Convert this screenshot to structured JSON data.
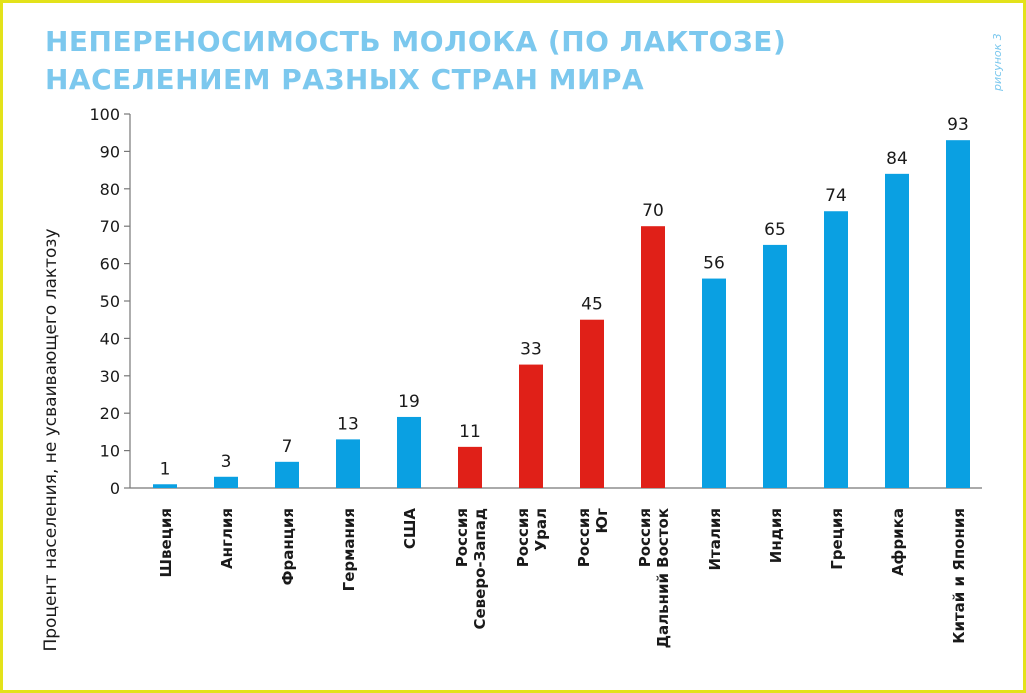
{
  "chart_data": {
    "type": "bar",
    "title": [
      "НЕПЕРЕНОСИМОСТЬ МОЛОКА (ПО ЛАКТОЗЕ)",
      "НАСЕЛЕНИЕМ РАЗНЫХ СТРАН МИРА"
    ],
    "figure_label": "рисунок 3",
    "ylabel": "Процент населения, не усваивающего лактозу",
    "xlabel": "",
    "ylim": [
      0,
      100
    ],
    "yticks": [
      0,
      10,
      20,
      30,
      40,
      50,
      60,
      70,
      80,
      90,
      100
    ],
    "grid": false,
    "categories": [
      [
        "Швеция"
      ],
      [
        "Англия"
      ],
      [
        "Франция"
      ],
      [
        "Германия"
      ],
      [
        "США"
      ],
      [
        "Россия",
        "Северо-Запад"
      ],
      [
        "Россия",
        "Урал"
      ],
      [
        "Россия",
        "Юг"
      ],
      [
        "Россия",
        "Дальний Восток"
      ],
      [
        "Италия"
      ],
      [
        "Индия"
      ],
      [
        "Греция"
      ],
      [
        "Африка"
      ],
      [
        "Китай и Япония"
      ]
    ],
    "values": [
      1,
      3,
      7,
      13,
      19,
      11,
      33,
      45,
      70,
      56,
      65,
      74,
      84,
      93
    ],
    "colors": [
      "#0aa0e2",
      "#0aa0e2",
      "#0aa0e2",
      "#0aa0e2",
      "#0aa0e2",
      "#e02018",
      "#e02018",
      "#e02018",
      "#e02018",
      "#0aa0e2",
      "#0aa0e2",
      "#0aa0e2",
      "#0aa0e2",
      "#0aa0e2"
    ],
    "frame_color": "#e3e21a",
    "title_color": "#7cc8ee"
  }
}
